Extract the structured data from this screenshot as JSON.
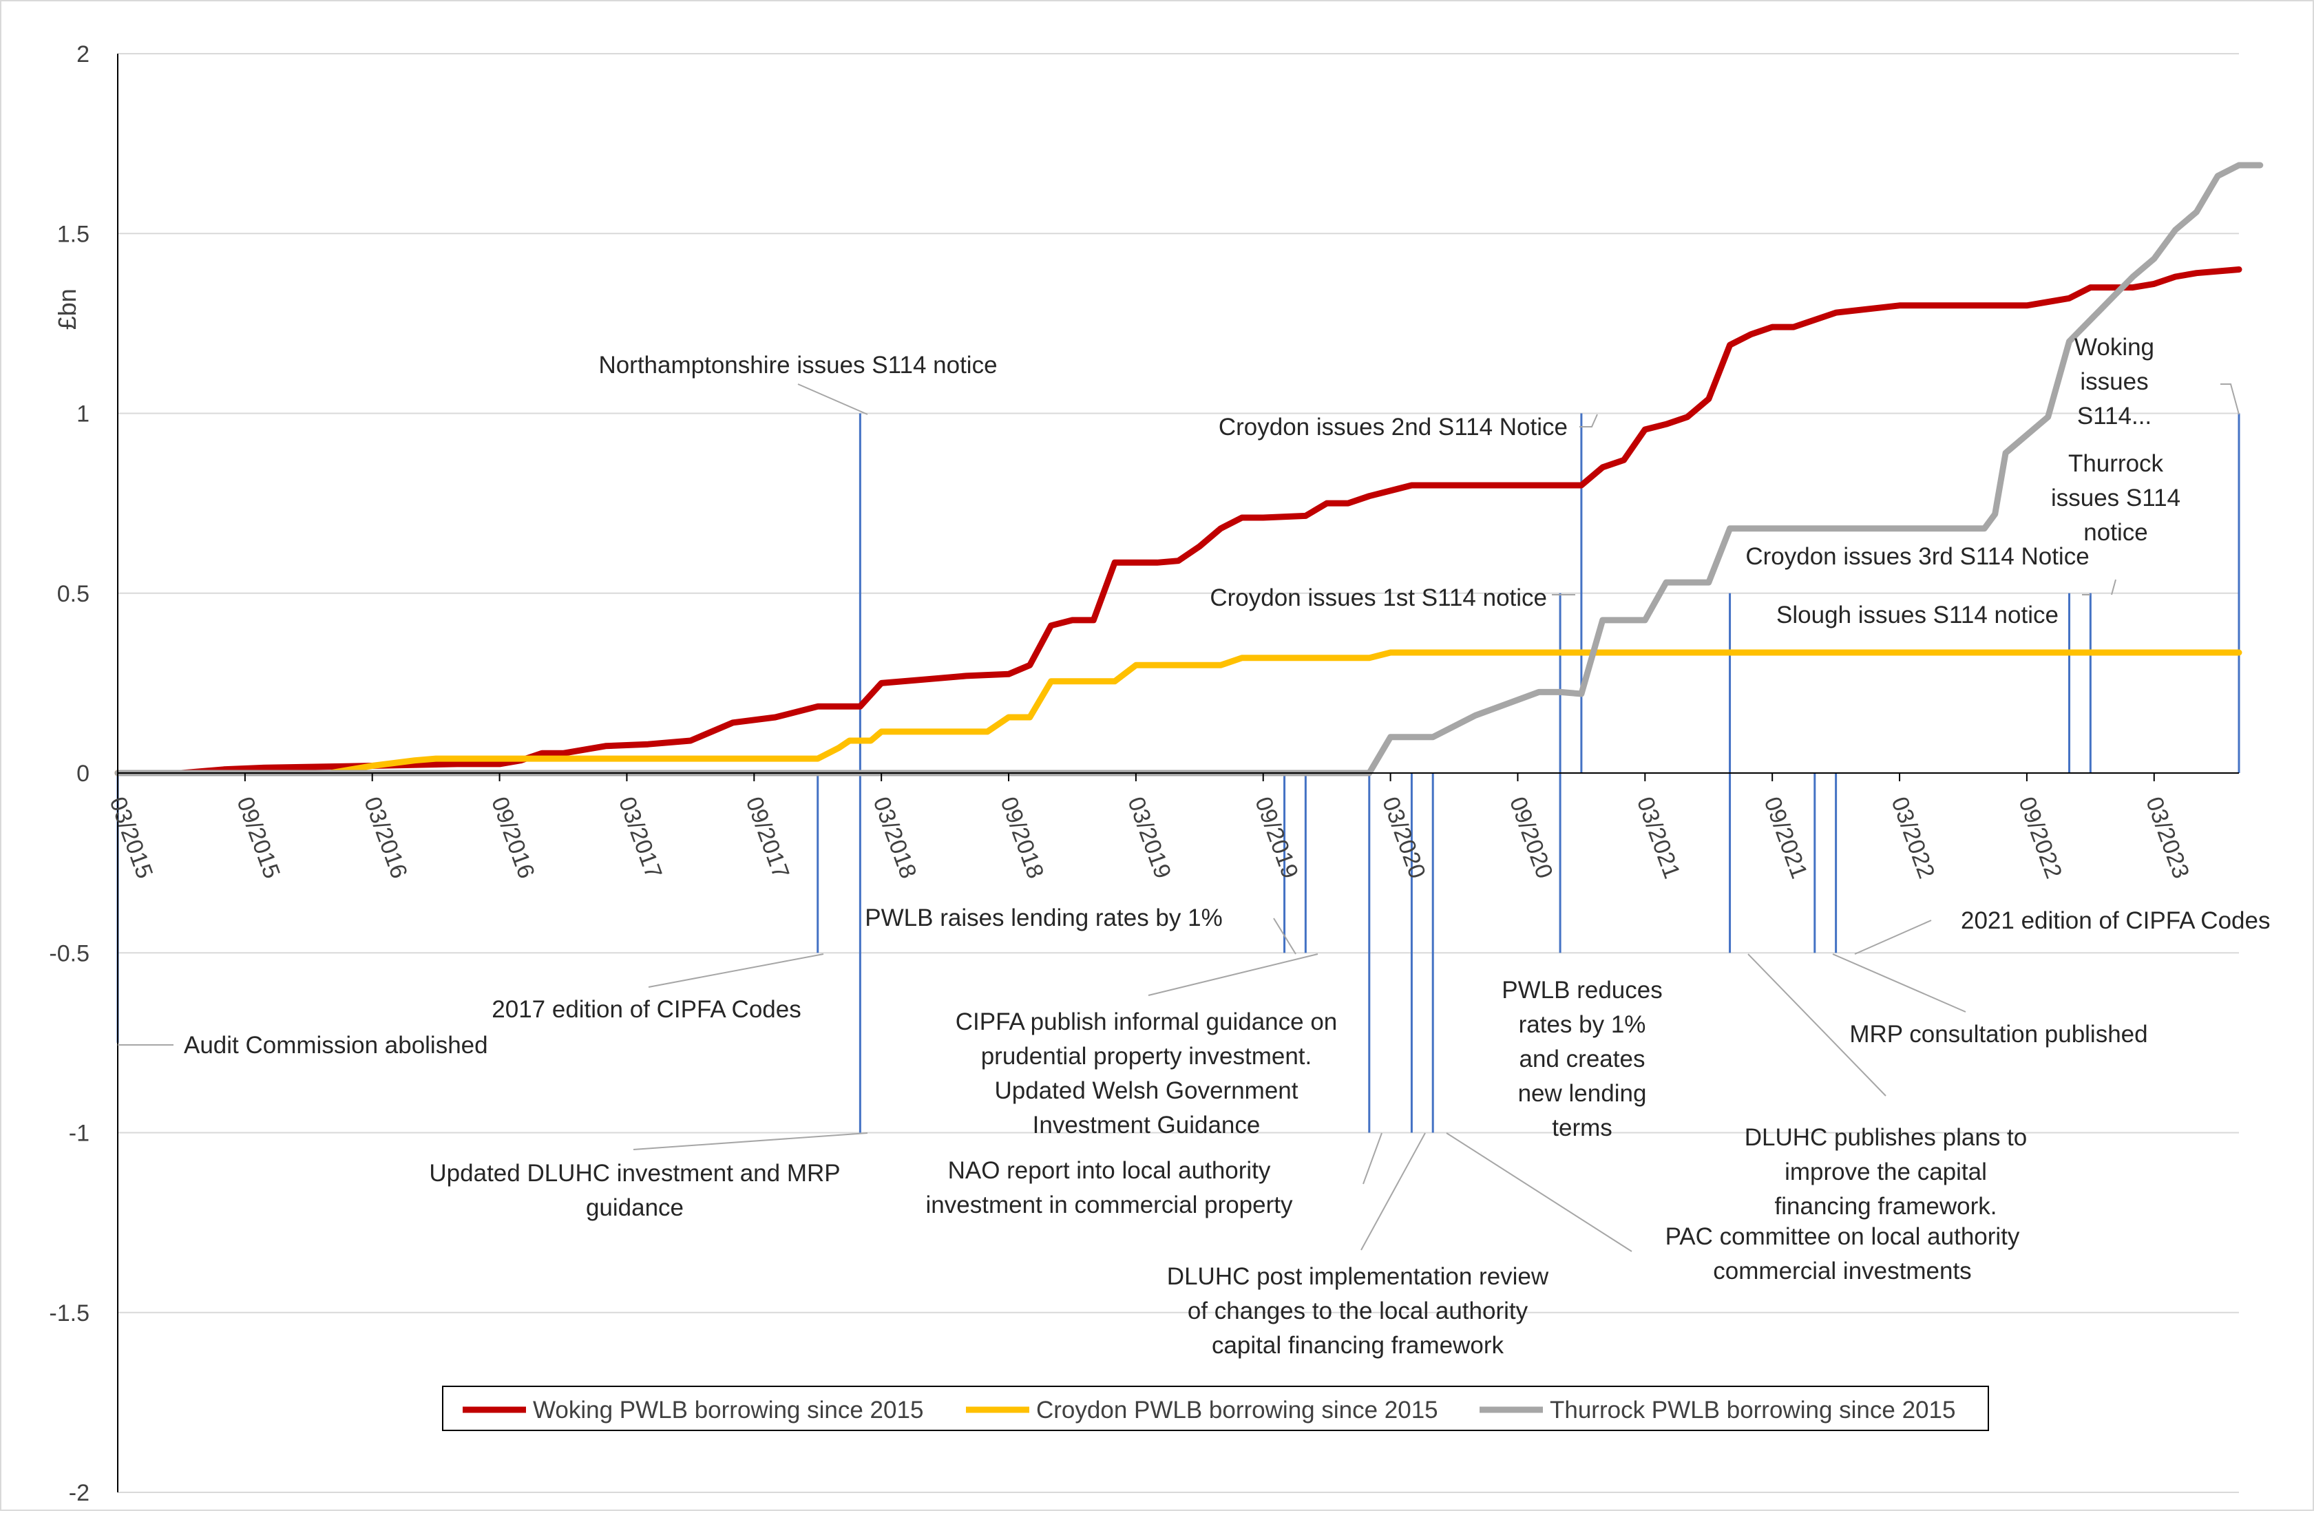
{
  "chart_data": {
    "type": "line",
    "title": "",
    "ylabel": "£bn",
    "xlabel": "",
    "ylim": [
      -2,
      2
    ],
    "yticks": [
      2,
      1.5,
      1,
      0.5,
      0,
      -0.5,
      -1,
      -1.5,
      -2
    ],
    "ytick_labels": [
      "2",
      "1.5",
      "1",
      "0.5",
      "0",
      "-0.5",
      "-1",
      "-1.5",
      "-2"
    ],
    "xlim_months": [
      0,
      100
    ],
    "xticks": [
      {
        "month": 0,
        "label": "03/2015"
      },
      {
        "month": 6,
        "label": "09/2015"
      },
      {
        "month": 12,
        "label": "03/2016"
      },
      {
        "month": 18,
        "label": "09/2016"
      },
      {
        "month": 24,
        "label": "03/2017"
      },
      {
        "month": 30,
        "label": "09/2017"
      },
      {
        "month": 36,
        "label": "03/2018"
      },
      {
        "month": 42,
        "label": "09/2018"
      },
      {
        "month": 48,
        "label": "03/2019"
      },
      {
        "month": 54,
        "label": "09/2019"
      },
      {
        "month": 60,
        "label": "03/2020"
      },
      {
        "month": 66,
        "label": "09/2020"
      },
      {
        "month": 72,
        "label": "03/2021"
      },
      {
        "month": 78,
        "label": "09/2021"
      },
      {
        "month": 84,
        "label": "03/2022"
      },
      {
        "month": 90,
        "label": "09/2022"
      },
      {
        "month": 96,
        "label": "03/2023"
      }
    ],
    "series": [
      {
        "name": "Woking PWLB borrowing since 2015",
        "color": "#c00000",
        "points": [
          [
            0,
            0
          ],
          [
            3,
            0
          ],
          [
            5,
            0.01
          ],
          [
            7,
            0.015
          ],
          [
            10,
            0.018
          ],
          [
            12,
            0.02
          ],
          [
            16,
            0.025
          ],
          [
            18,
            0.025
          ],
          [
            19,
            0.035
          ],
          [
            20,
            0.055
          ],
          [
            21,
            0.055
          ],
          [
            23,
            0.075
          ],
          [
            25,
            0.08
          ],
          [
            27,
            0.09
          ],
          [
            29,
            0.14
          ],
          [
            31,
            0.155
          ],
          [
            32,
            0.17
          ],
          [
            33,
            0.185
          ],
          [
            35,
            0.185
          ],
          [
            36,
            0.25
          ],
          [
            38,
            0.26
          ],
          [
            40,
            0.27
          ],
          [
            42,
            0.275
          ],
          [
            43,
            0.3
          ],
          [
            44,
            0.41
          ],
          [
            45,
            0.425
          ],
          [
            46,
            0.425
          ],
          [
            47,
            0.585
          ],
          [
            48,
            0.585
          ],
          [
            49,
            0.585
          ],
          [
            50,
            0.59
          ],
          [
            51,
            0.63
          ],
          [
            52,
            0.68
          ],
          [
            53,
            0.71
          ],
          [
            54,
            0.71
          ],
          [
            56,
            0.715
          ],
          [
            57,
            0.75
          ],
          [
            58,
            0.75
          ],
          [
            59,
            0.77
          ],
          [
            61,
            0.8
          ],
          [
            64,
            0.8
          ],
          [
            67,
            0.8
          ],
          [
            69,
            0.8
          ],
          [
            70,
            0.85
          ],
          [
            71,
            0.87
          ],
          [
            72,
            0.955
          ],
          [
            73,
            0.97
          ],
          [
            74,
            0.99
          ],
          [
            75,
            1.04
          ],
          [
            76,
            1.19
          ],
          [
            77,
            1.22
          ],
          [
            78,
            1.24
          ],
          [
            79,
            1.24
          ],
          [
            81,
            1.28
          ],
          [
            84,
            1.3
          ],
          [
            86,
            1.3
          ],
          [
            88,
            1.3
          ],
          [
            90,
            1.3
          ],
          [
            92,
            1.32
          ],
          [
            93,
            1.35
          ],
          [
            95,
            1.35
          ],
          [
            96,
            1.36
          ],
          [
            97,
            1.38
          ],
          [
            98,
            1.39
          ],
          [
            100,
            1.4
          ]
        ]
      },
      {
        "name": "Croydon PWLB borrowing since 2015",
        "color": "#ffc000",
        "points": [
          [
            0,
            0
          ],
          [
            10,
            0
          ],
          [
            11,
            0.01
          ],
          [
            12,
            0.02
          ],
          [
            14,
            0.035
          ],
          [
            15,
            0.04
          ],
          [
            20,
            0.04
          ],
          [
            25,
            0.04
          ],
          [
            29,
            0.04
          ],
          [
            33,
            0.04
          ],
          [
            34,
            0.07
          ],
          [
            34.5,
            0.09
          ],
          [
            35.5,
            0.09
          ],
          [
            36,
            0.115
          ],
          [
            41,
            0.115
          ],
          [
            42,
            0.155
          ],
          [
            43,
            0.155
          ],
          [
            44,
            0.255
          ],
          [
            47,
            0.255
          ],
          [
            48,
            0.3
          ],
          [
            52,
            0.3
          ],
          [
            53,
            0.32
          ],
          [
            59,
            0.32
          ],
          [
            60,
            0.335
          ],
          [
            100,
            0.335
          ]
        ]
      },
      {
        "name": "Thurrock PWLB borrowing since 2015",
        "color": "#a6a6a6",
        "points": [
          [
            0,
            0
          ],
          [
            59,
            0
          ],
          [
            60,
            0.1
          ],
          [
            62,
            0.1
          ],
          [
            64,
            0.16
          ],
          [
            67,
            0.225
          ],
          [
            68,
            0.225
          ],
          [
            69,
            0.22
          ],
          [
            70,
            0.425
          ],
          [
            72,
            0.425
          ],
          [
            73,
            0.53
          ],
          [
            75,
            0.53
          ],
          [
            76,
            0.68
          ],
          [
            88,
            0.68
          ],
          [
            88.5,
            0.72
          ],
          [
            89,
            0.89
          ],
          [
            91,
            0.99
          ],
          [
            92,
            1.2
          ],
          [
            93,
            1.26
          ],
          [
            94,
            1.32
          ],
          [
            95,
            1.38
          ],
          [
            96,
            1.43
          ],
          [
            97,
            1.51
          ],
          [
            98,
            1.56
          ],
          [
            99,
            1.66
          ],
          [
            100,
            1.69
          ],
          [
            101,
            1.69
          ]
        ]
      }
    ],
    "events": [
      {
        "id": "audit-commission",
        "month": 0,
        "y_end": -0.75,
        "label": [
          "Audit Commission abolished"
        ]
      },
      {
        "id": "cipfa-2017",
        "month": 33,
        "y_end": -0.5,
        "label": [
          "2017 edition of CIPFA Codes"
        ]
      },
      {
        "id": "northamptonshire",
        "month": 35,
        "y_end": 1.0,
        "label": [
          "Northamptonshire issues S114 notice"
        ]
      },
      {
        "id": "dluhc-guidance",
        "month": 35,
        "y_end": -1.0,
        "label": [
          "Updated DLUHC investment and MRP",
          "guidance"
        ]
      },
      {
        "id": "pwlb-raises",
        "month": 55,
        "y_end": -0.5,
        "label": [
          "PWLB raises lending rates by 1%"
        ]
      },
      {
        "id": "cipfa-informal",
        "month": 56,
        "y_end": -0.5,
        "label": [
          "CIPFA publish informal guidance on",
          "prudential property investment.",
          "Updated Welsh Government",
          "Investment Guidance"
        ]
      },
      {
        "id": "nao-report",
        "month": 59,
        "y_end": -1.0,
        "label": [
          "NAO report into local authority",
          "investment in commercial property"
        ]
      },
      {
        "id": "dluhc-pir",
        "month": 61,
        "y_end": -1.0,
        "label": [
          "DLUHC post implementation review",
          "of changes to the local authority",
          "capital financing framework"
        ]
      },
      {
        "id": "pac-committee",
        "month": 62,
        "y_end": -1.0,
        "label": [
          "PAC committee on local authority",
          "commercial investments"
        ]
      },
      {
        "id": "croydon-1st",
        "month": 68,
        "y_end": 0.5,
        "label": [
          "Croydon issues 1st S114 notice"
        ]
      },
      {
        "id": "pwlb-reduces",
        "month": 68,
        "y_end": -0.5,
        "label": [
          "PWLB reduces",
          "rates by 1%",
          "and creates",
          "new lending",
          "terms"
        ]
      },
      {
        "id": "croydon-2nd",
        "month": 69,
        "y_end": 1.0,
        "label": [
          "Croydon issues 2nd S114 Notice"
        ]
      },
      {
        "id": "slough",
        "month": 76,
        "y_end": 0.5,
        "label": [
          "Slough issues S114 notice"
        ]
      },
      {
        "id": "dluhc-plans",
        "month": 76,
        "y_end": -0.5,
        "label": [
          "DLUHC publishes plans to",
          "improve the capital",
          "financing framework."
        ]
      },
      {
        "id": "mrp-consultation",
        "month": 80,
        "y_end": -0.5,
        "label": [
          "MRP consultation published"
        ]
      },
      {
        "id": "cipfa-2021",
        "month": 81,
        "y_end": -0.5,
        "label": [
          "2021 edition of CIPFA Codes"
        ]
      },
      {
        "id": "croydon-3rd",
        "month": 92,
        "y_end": 0.5,
        "label": [
          "Croydon issues 3rd S114 Notice"
        ]
      },
      {
        "id": "thurrock",
        "month": 93,
        "y_end": 0.5,
        "label": [
          "Thurrock",
          "issues S114",
          "notice"
        ]
      },
      {
        "id": "woking",
        "month": 100,
        "y_end": 1.0,
        "label": [
          "Woking",
          "issues",
          "S114..."
        ]
      }
    ],
    "legend": {
      "placement": "bottom-center",
      "entries": [
        "Woking PWLB borrowing since 2015",
        "Croydon PWLB borrowing since 2015",
        "Thurrock PWLB borrowing since 2015"
      ]
    },
    "grid": true
  }
}
